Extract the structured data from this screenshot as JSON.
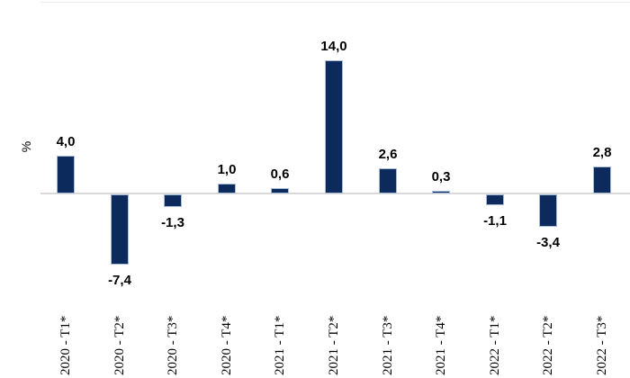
{
  "chart_data": {
    "type": "bar",
    "title": "",
    "ylabel": "%",
    "xlabel": "",
    "categories": [
      "2020 - T1*",
      "2020 - T2*",
      "2020 - T3*",
      "2020 - T4*",
      "2021 - T1*",
      "2021 - T2*",
      "2021 - T3*",
      "2021 - T4*",
      "2022 - T1*",
      "2022 - T2*",
      "2022 - T3*"
    ],
    "values": [
      4.0,
      -7.4,
      -1.3,
      1.0,
      0.6,
      14.0,
      2.6,
      0.3,
      -1.1,
      -3.4,
      2.8
    ],
    "value_labels": [
      "4,0",
      "-7,4",
      "-1,3",
      "1,0",
      "0,6",
      "14,0",
      "2,6",
      "0,3",
      "-1,1",
      "-3,4",
      "2,8"
    ],
    "decimal_separator": ",",
    "ylim": [
      -8,
      15
    ],
    "grid": false,
    "legend": false,
    "bar_color": "#0d2a5c",
    "bar_border_color": "#a9bcd9",
    "axis_line_color": "#d9d9d9",
    "label_color": "#000000"
  }
}
